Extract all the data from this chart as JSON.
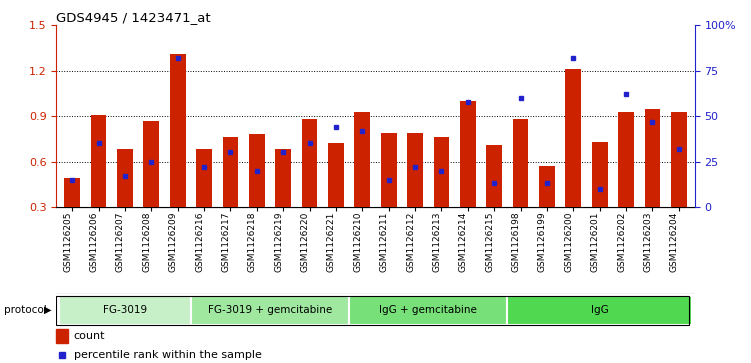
{
  "title": "GDS4945 / 1423471_at",
  "samples": [
    "GSM1126205",
    "GSM1126206",
    "GSM1126207",
    "GSM1126208",
    "GSM1126209",
    "GSM1126216",
    "GSM1126217",
    "GSM1126218",
    "GSM1126219",
    "GSM1126220",
    "GSM1126221",
    "GSM1126210",
    "GSM1126211",
    "GSM1126212",
    "GSM1126213",
    "GSM1126214",
    "GSM1126215",
    "GSM1126198",
    "GSM1126199",
    "GSM1126200",
    "GSM1126201",
    "GSM1126202",
    "GSM1126203",
    "GSM1126204"
  ],
  "counts": [
    0.49,
    0.91,
    0.68,
    0.87,
    1.31,
    0.68,
    0.76,
    0.78,
    0.68,
    0.88,
    0.72,
    0.93,
    0.79,
    0.79,
    0.76,
    1.0,
    0.71,
    0.88,
    0.57,
    1.21,
    0.73,
    0.93,
    0.95,
    0.93
  ],
  "percentile_ranks": [
    15,
    35,
    17,
    25,
    82,
    22,
    30,
    20,
    30,
    35,
    44,
    42,
    15,
    22,
    20,
    58,
    13,
    60,
    13,
    82,
    10,
    62,
    47,
    32
  ],
  "protocols": [
    {
      "label": "FG-3019",
      "start": 0,
      "end": 5,
      "color": "#c8f0c8"
    },
    {
      "label": "FG-3019 + gemcitabine",
      "start": 5,
      "end": 11,
      "color": "#a0e8a0"
    },
    {
      "label": "IgG + gemcitabine",
      "start": 11,
      "end": 17,
      "color": "#78e078"
    },
    {
      "label": "IgG",
      "start": 17,
      "end": 24,
      "color": "#50d850"
    }
  ],
  "ylim_left": [
    0.3,
    1.5
  ],
  "ylim_right": [
    0,
    100
  ],
  "bar_color": "#cc2200",
  "dot_color": "#2222cc",
  "yticks_left": [
    0.3,
    0.6,
    0.9,
    1.2,
    1.5
  ],
  "yticks_right": [
    0,
    25,
    50,
    75,
    100
  ],
  "ytick_labels_right": [
    "0",
    "25",
    "50",
    "75",
    "100%"
  ],
  "label_bg_color": "#d8d8d8"
}
